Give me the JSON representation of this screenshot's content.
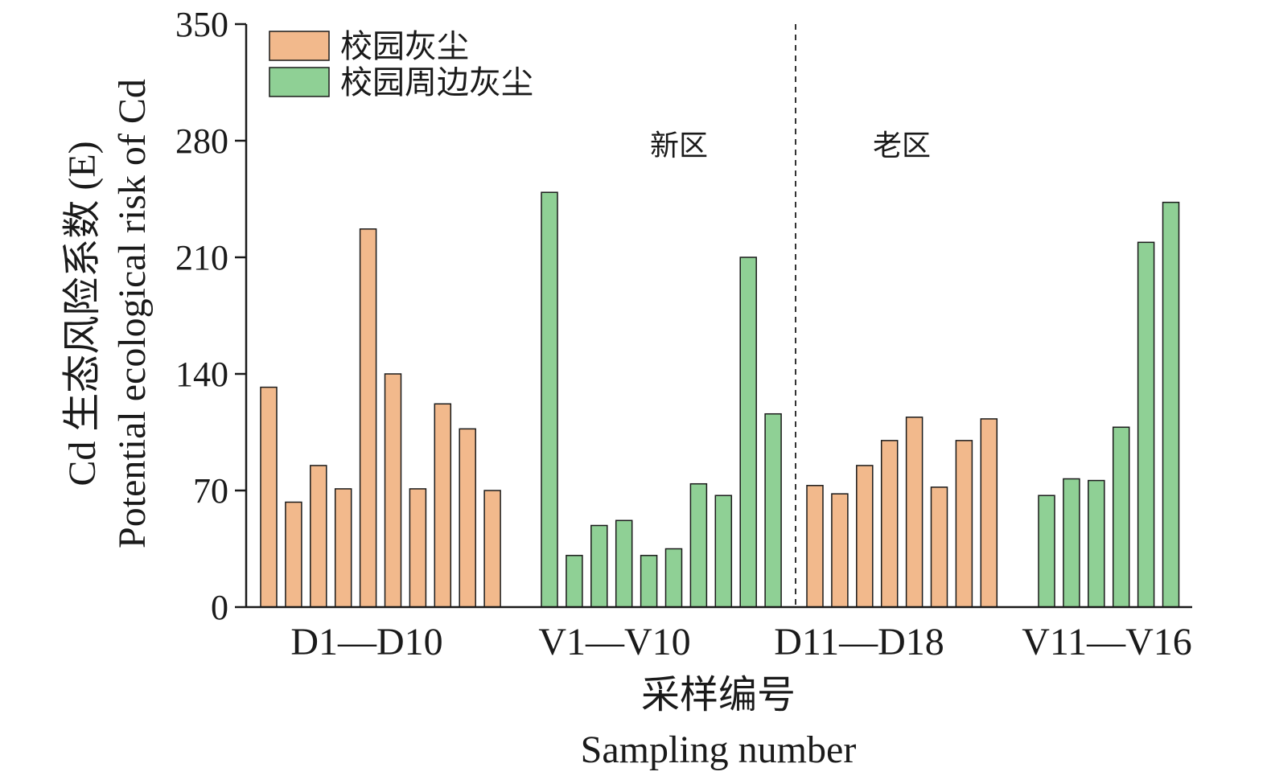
{
  "colors": {
    "campus_dust": "#f2b98c",
    "surrounding_dust": "#8fd095",
    "axis": "#1a1a1a",
    "background": "#ffffff"
  },
  "chart_data": {
    "type": "bar",
    "ylabel_cn": "Cd 生态风险系数 (E)",
    "ylabel_en": "Potential ecological risk of Cd",
    "xlabel_cn": "采样编号",
    "xlabel_en": "Sampling number",
    "ylim": [
      0,
      350
    ],
    "yticks": [
      "0",
      "70",
      "140",
      "210",
      "280",
      "350"
    ],
    "legend_placement": "top-left",
    "legend": [
      {
        "key": "campus",
        "label": "校园灰尘"
      },
      {
        "key": "surrounding",
        "label": "校园周边灰尘"
      }
    ],
    "regions": [
      {
        "label": "新区"
      },
      {
        "label": "老区"
      }
    ],
    "groups": [
      {
        "label": "D1—D10",
        "series": "campus",
        "values": [
          132,
          63,
          85,
          71,
          227,
          140,
          71,
          122,
          107,
          70
        ]
      },
      {
        "label": "V1—V10",
        "series": "surrounding",
        "values": [
          249,
          31,
          49,
          52,
          31,
          35,
          74,
          67,
          210,
          116
        ]
      },
      {
        "label": "D11—D18",
        "series": "campus",
        "values": [
          73,
          68,
          85,
          100,
          114,
          72,
          100,
          113
        ]
      },
      {
        "label": "V11—V16",
        "series": "surrounding",
        "values": [
          67,
          77,
          76,
          108,
          219,
          243
        ]
      }
    ]
  }
}
